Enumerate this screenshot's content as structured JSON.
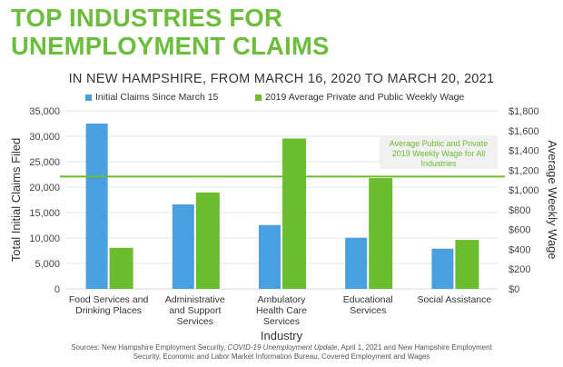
{
  "header": {
    "title_line1": "TOP INDUSTRIES FOR",
    "title_line2": "UNEMPLOYMENT CLAIMS",
    "title_color": "#6cbd3c"
  },
  "chart_data": {
    "type": "bar",
    "title": "IN NEW HAMPSHIRE, FROM MARCH 16, 2020 TO MARCH 20, 2021",
    "xlabel": "Industry",
    "ylabel": "Total Initial Claims Filed",
    "y2label": "Average Weekly Wage",
    "categories": [
      "Food Services and Drinking Places",
      "Administrative and Support Services",
      "Ambulatory Health Care Services",
      "Educational Services",
      "Social Assistance"
    ],
    "category_lines": [
      [
        "Food Services and",
        "Drinking Places"
      ],
      [
        "Administrative",
        "and Support",
        "Services"
      ],
      [
        "Ambulatory",
        "Health Care",
        "Services"
      ],
      [
        "Educational",
        "Services"
      ],
      [
        "Social Assistance"
      ]
    ],
    "series": [
      {
        "name": "Initial Claims Since March 15",
        "axis": "left",
        "color": "#4a9fde",
        "values": [
          32500,
          16600,
          12550,
          10050,
          7900
        ]
      },
      {
        "name": "2019 Average Private and Public Weekly Wage",
        "axis": "right",
        "color": "#6cbd2e",
        "values": [
          415,
          975,
          1520,
          1120,
          495
        ]
      }
    ],
    "ylim": [
      0,
      35000
    ],
    "yticks": [
      0,
      5000,
      10000,
      15000,
      20000,
      25000,
      30000,
      35000
    ],
    "ytick_labels": [
      "0",
      "5,000",
      "10,000",
      "15,000",
      "20,000",
      "25,000",
      "30,000",
      "35,000"
    ],
    "y2lim": [
      0,
      1800
    ],
    "y2ticks": [
      0,
      200,
      400,
      600,
      800,
      1000,
      1200,
      1400,
      1600,
      1800
    ],
    "y2tick_labels": [
      "$0",
      "$200",
      "$400",
      "$600",
      "$800",
      "$1,000",
      "$1,200",
      "$1,400",
      "$1,600",
      "$1,800"
    ],
    "reference_line": {
      "value": 1135,
      "axis": "right",
      "color": "#6cbd2e",
      "annotation_lines": [
        "Average Public and Private",
        "2019 Weekly Wage for All",
        "Industries"
      ]
    },
    "grid": true,
    "legend": "top-center"
  },
  "footer": {
    "source_prefix": "Sources: New Hampshire Employment Security, ",
    "source_italic": "COVID-19 Unemployment Update",
    "source_line1_suffix": ", April 1, 2021 and New Hampshire Employment",
    "source_line2": "Security, Economic and Labor Market Information Bureau, Covered Employment and Wages"
  }
}
